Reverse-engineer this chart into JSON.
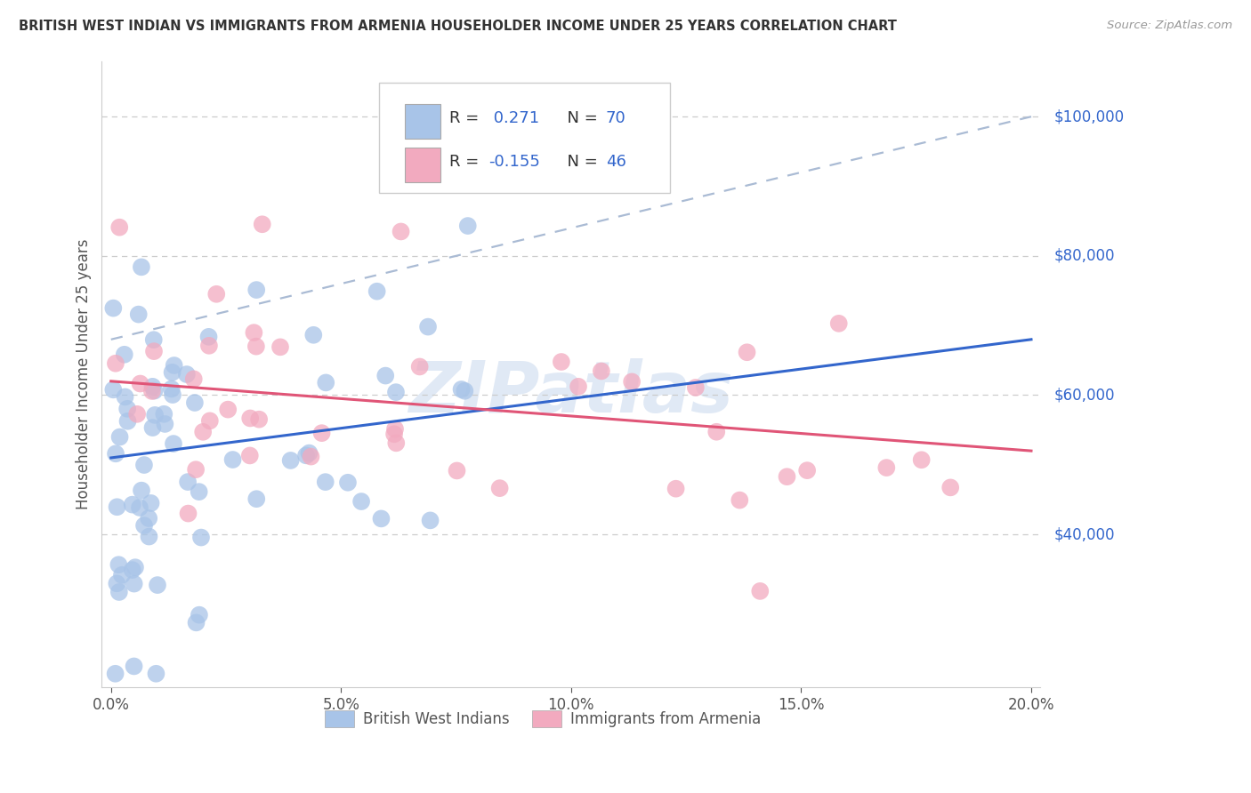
{
  "title": "BRITISH WEST INDIAN VS IMMIGRANTS FROM ARMENIA HOUSEHOLDER INCOME UNDER 25 YEARS CORRELATION CHART",
  "source": "Source: ZipAtlas.com",
  "ylabel": "Householder Income Under 25 years",
  "xlim": [
    -0.002,
    0.202
  ],
  "ylim": [
    18000,
    108000
  ],
  "xtick_labels": [
    "0.0%",
    "5.0%",
    "10.0%",
    "15.0%",
    "20.0%"
  ],
  "xtick_values": [
    0.0,
    0.05,
    0.1,
    0.15,
    0.2
  ],
  "ytick_values": [
    40000,
    60000,
    80000,
    100000
  ],
  "ytick_labels": [
    "$40,000",
    "$60,000",
    "$80,000",
    "$100,000"
  ],
  "color_blue": "#A8C4E8",
  "color_pink": "#F2AABF",
  "line_blue": "#3366CC",
  "line_pink": "#E05577",
  "dashed_color": "#AABBD4",
  "watermark_color": "#C8D8EE",
  "background_color": "#FFFFFF",
  "grid_color": "#CCCCCC",
  "axis_color": "#CCCCCC",
  "label_color": "#555555",
  "right_label_color": "#3366CC",
  "title_color": "#333333",
  "source_color": "#999999",
  "blue_line_x": [
    0.0,
    0.2
  ],
  "blue_line_y": [
    51000,
    68000
  ],
  "pink_line_x": [
    0.0,
    0.2
  ],
  "pink_line_y": [
    62000,
    52000
  ],
  "dashed_line_x": [
    0.0,
    0.2
  ],
  "dashed_line_y": [
    68000,
    100000
  ],
  "legend_items": [
    {
      "color": "#A8C4E8",
      "text_r": "R = ",
      "val_r": " 0.271",
      "text_n": "  N = ",
      "val_n": "70"
    },
    {
      "color": "#F2AABF",
      "text_r": "R = ",
      "val_r": "-0.155",
      "text_n": "  N = ",
      "val_n": "46"
    }
  ]
}
